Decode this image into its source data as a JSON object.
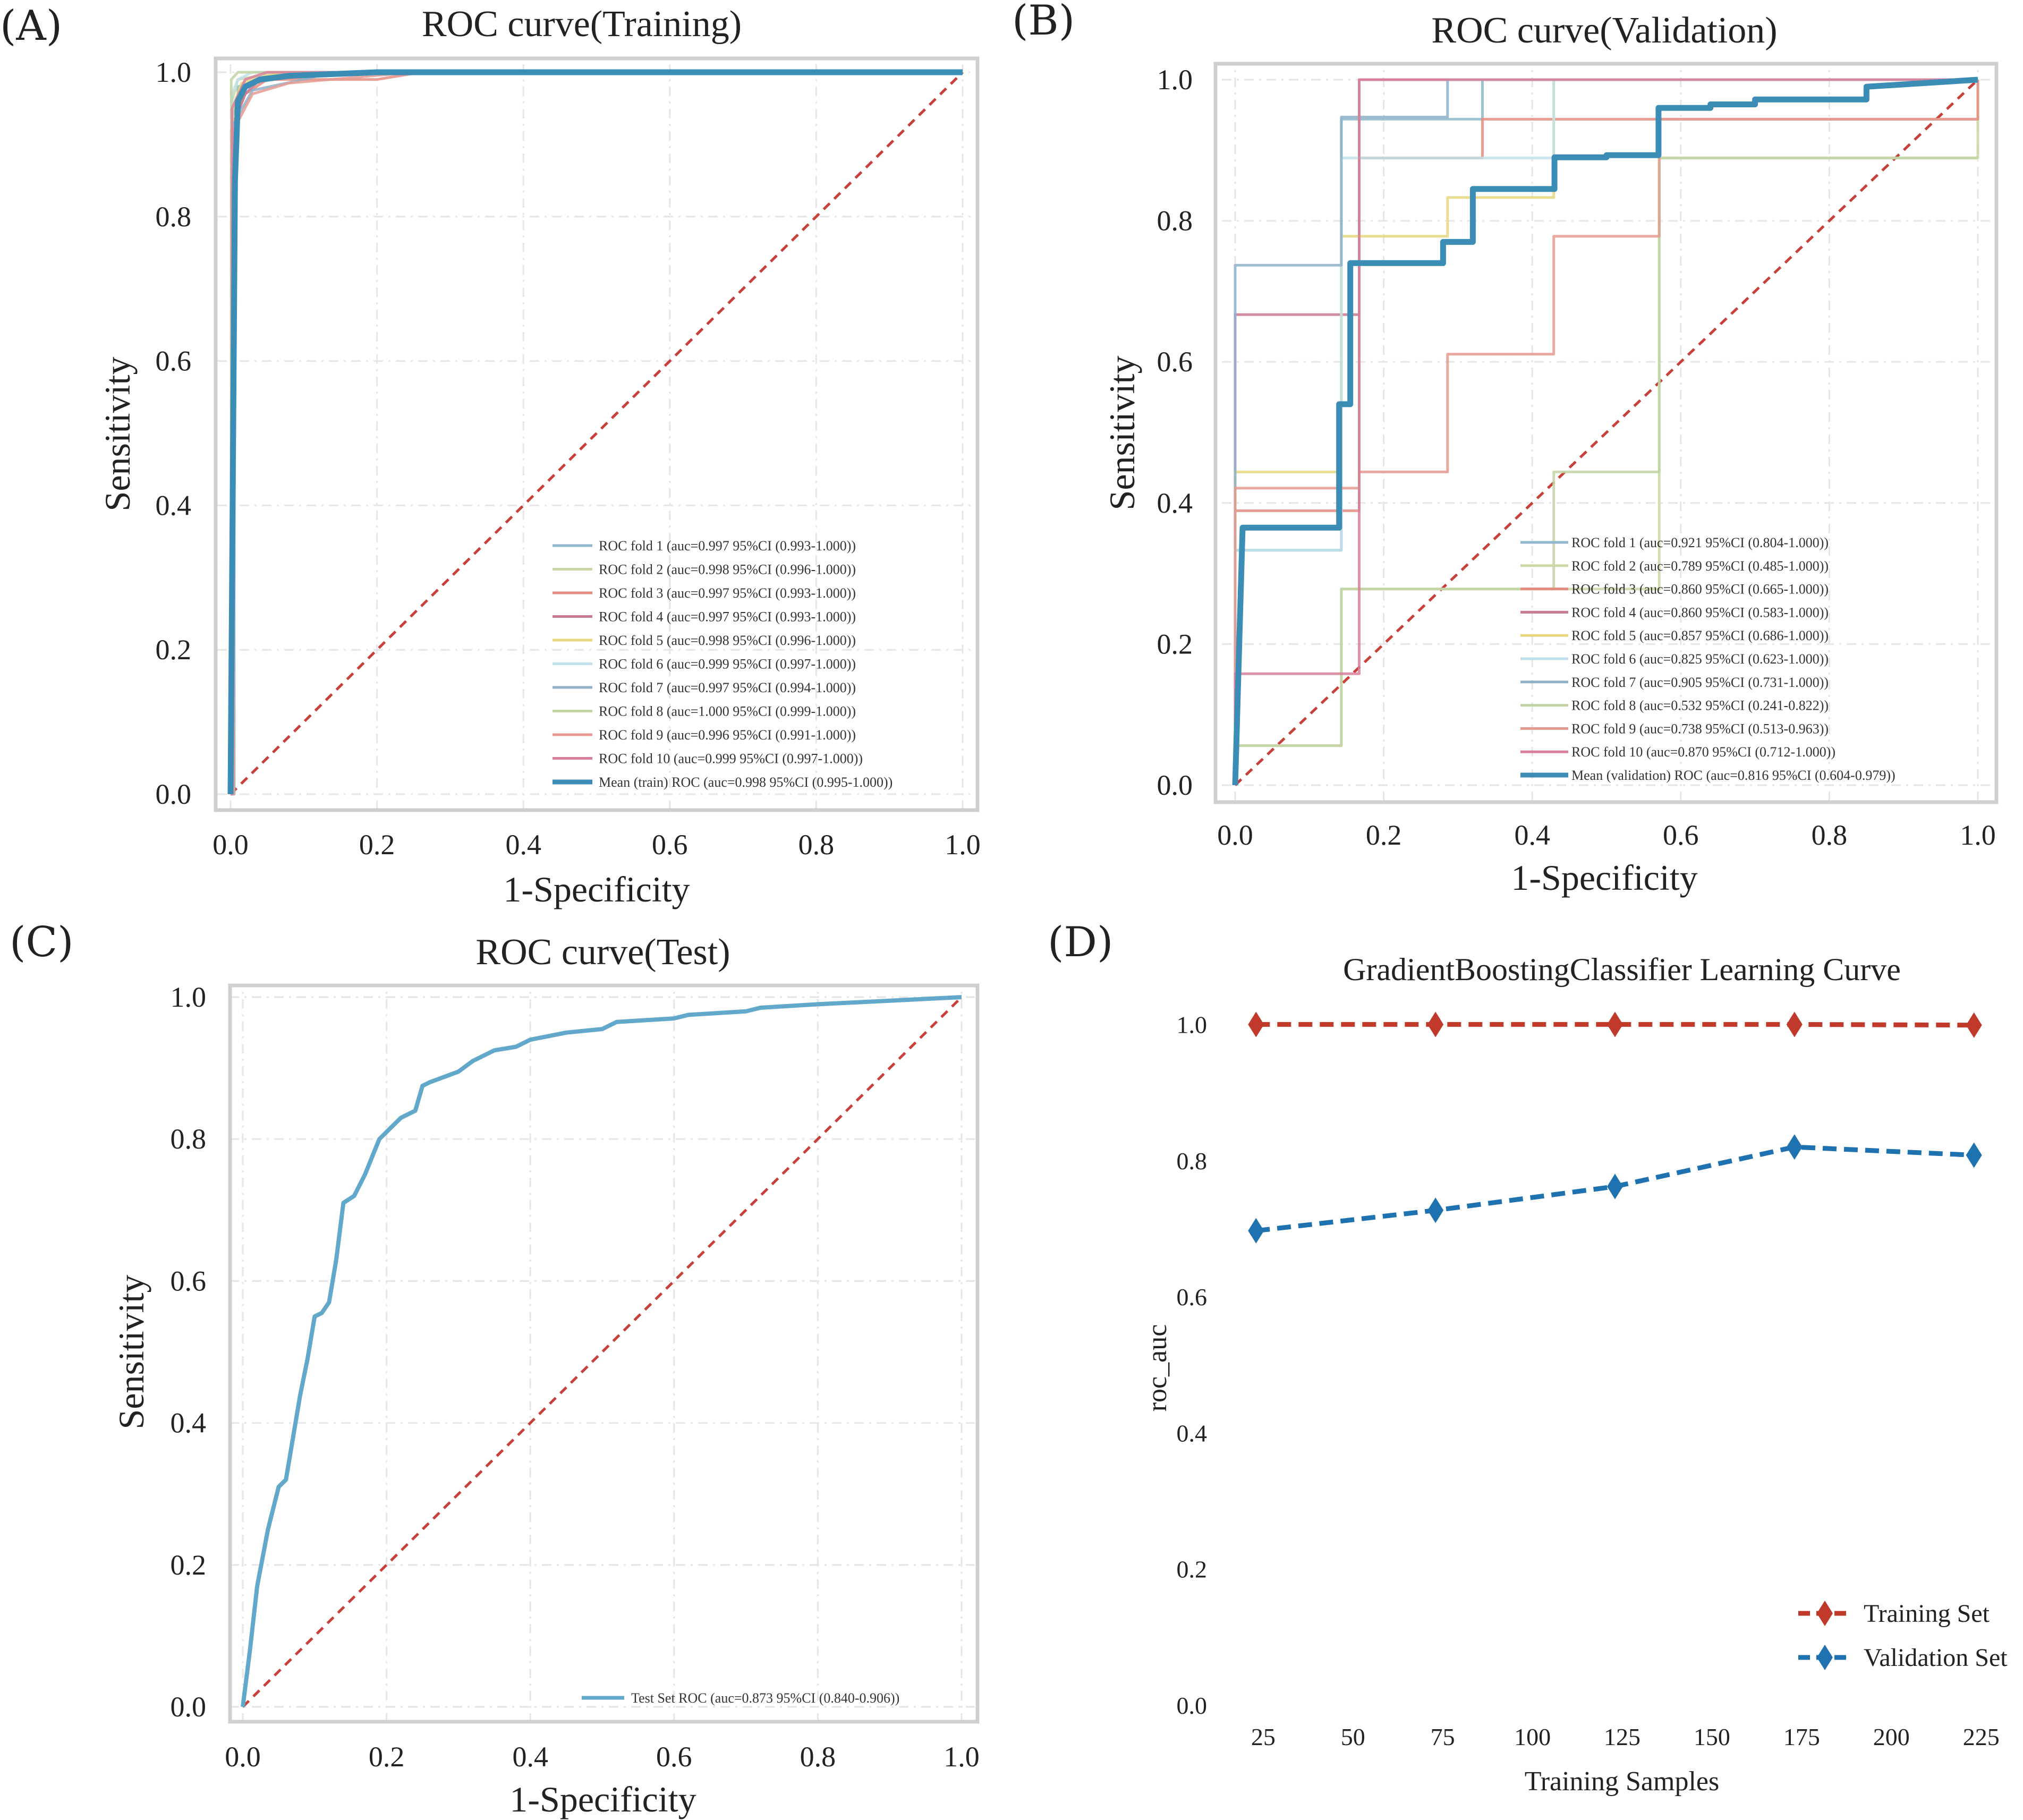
{
  "panel_labels": [
    "(A)",
    "(B)",
    "(C)",
    "(D)"
  ],
  "colors": {
    "fold": [
      "#8fb8cc",
      "#c9d7a6",
      "#e58c80",
      "#c87a8e",
      "#e6d77e",
      "#bfe0ea",
      "#8fb1c8",
      "#c2d4a3",
      "#e69a8f",
      "#d8809a"
    ],
    "mean": "#3b8db5",
    "test": "#62a8cb",
    "chance": "#c8403a",
    "train_curve": "#c0392b",
    "val_curve": "#1f72b0"
  },
  "chart_data": [
    {
      "id": "A",
      "type": "line",
      "title": "ROC curve(Training)",
      "xlabel": "1-Specificity",
      "ylabel": "Sensitivity",
      "xlim": [
        0,
        1
      ],
      "ylim": [
        0,
        1
      ],
      "xticks": [
        "0.0",
        "0.2",
        "0.4",
        "0.6",
        "0.8",
        "1.0"
      ],
      "yticks": [
        "0.0",
        "0.2",
        "0.4",
        "0.6",
        "0.8",
        "1.0"
      ],
      "grid": true,
      "legend_position": "lower-right",
      "series": [
        {
          "name": "ROC fold   1 (auc=0.997 95%CI (0.993-1.000))",
          "x": [
            0,
            0.003,
            0.003,
            0.01,
            0.01,
            0.03,
            0.06,
            0.15,
            1
          ],
          "y": [
            0,
            0,
            0.94,
            0.96,
            0.98,
            0.985,
            0.99,
            1,
            1
          ]
        },
        {
          "name": "ROC fold   2 (auc=0.998 95%CI (0.996-1.000))",
          "x": [
            0,
            0.002,
            0.002,
            0.01,
            0.04,
            0.08,
            1
          ],
          "y": [
            0,
            0,
            0.96,
            0.99,
            0.995,
            1,
            1
          ]
        },
        {
          "name": "ROC fold   3 (auc=0.997 95%CI (0.993-1.000))",
          "x": [
            0,
            0.004,
            0.004,
            0.02,
            0.05,
            0.2,
            0.26,
            1
          ],
          "y": [
            0,
            0,
            0.93,
            0.97,
            0.99,
            0.99,
            1,
            1
          ]
        },
        {
          "name": "ROC fold   4 (auc=0.997 95%CI (0.993-1.000))",
          "x": [
            0,
            0.001,
            0.001,
            0.02,
            0.04,
            0.12,
            1
          ],
          "y": [
            0,
            0,
            0.92,
            0.97,
            0.99,
            1,
            1
          ]
        },
        {
          "name": "ROC fold   5 (auc=0.998 95%CI (0.996-1.000))",
          "x": [
            0,
            0.003,
            0.003,
            0.015,
            0.05,
            0.1,
            1
          ],
          "y": [
            0,
            0,
            0.95,
            0.985,
            0.995,
            1,
            1
          ]
        },
        {
          "name": "ROC fold   6 (auc=0.999 95%CI (0.997-1.000))",
          "x": [
            0,
            0.002,
            0.002,
            0.01,
            0.03,
            1
          ],
          "y": [
            0,
            0,
            0.97,
            0.99,
            1,
            1
          ]
        },
        {
          "name": "ROC fold   7 (auc=0.997 95%CI (0.994-1.000))",
          "x": [
            0,
            0.005,
            0.005,
            0.03,
            0.1,
            0.14,
            1
          ],
          "y": [
            0,
            0,
            0.93,
            0.975,
            0.99,
            1,
            1
          ]
        },
        {
          "name": "ROC fold   8 (auc=1.000 95%CI (0.999-1.000))",
          "x": [
            0,
            0.001,
            0.001,
            0.01,
            1
          ],
          "y": [
            0,
            0,
            0.99,
            1,
            1
          ]
        },
        {
          "name": "ROC fold   9 (auc=0.996 95%CI (0.991-1.000))",
          "x": [
            0,
            0.004,
            0.004,
            0.03,
            0.08,
            0.25,
            1
          ],
          "y": [
            0,
            0,
            0.92,
            0.97,
            0.985,
            1,
            1
          ]
        },
        {
          "name": "ROC fold   10 (auc=0.999 95%CI (0.997-1.000))",
          "x": [
            0,
            0.002,
            0.002,
            0.02,
            0.05,
            1
          ],
          "y": [
            0,
            0,
            0.95,
            0.99,
            1,
            1
          ]
        },
        {
          "name": "Mean (train) ROC (auc=0.998 95%CI (0.995-1.000))",
          "mean": true,
          "x": [
            0,
            0.006,
            0.01,
            0.02,
            0.04,
            0.08,
            0.2,
            1
          ],
          "y": [
            0,
            0.85,
            0.96,
            0.98,
            0.99,
            0.995,
            1,
            1
          ]
        }
      ]
    },
    {
      "id": "B",
      "type": "line",
      "title": "ROC curve(Validation)",
      "xlabel": "1-Specificity",
      "ylabel": "Sensitivity",
      "xlim": [
        0,
        1
      ],
      "ylim": [
        0,
        1
      ],
      "xticks": [
        "0.0",
        "0.2",
        "0.4",
        "0.6",
        "0.8",
        "1.0"
      ],
      "yticks": [
        "0.0",
        "0.2",
        "0.4",
        "0.6",
        "0.8",
        "1.0"
      ],
      "grid": true,
      "legend_position": "lower-right",
      "series": [
        {
          "name": "ROC fold   1 (auc=0.921 95%CI (0.804-1.000))",
          "x": [
            0,
            0,
            0.143,
            0.143,
            0.333,
            0.333,
            0.667,
            1
          ],
          "y": [
            0,
            0.333,
            0.333,
            0.944,
            0.944,
            1,
            1,
            1
          ]
        },
        {
          "name": "ROC fold   2 (auc=0.789 95%CI (0.485-1.000))",
          "x": [
            0,
            0.143,
            0.143,
            0.571,
            0.571,
            1,
            1
          ],
          "y": [
            0.056,
            0.056,
            0.278,
            0.278,
            0.889,
            0.889,
            1
          ]
        },
        {
          "name": "ROC fold   3 (auc=0.860 95%CI (0.665-1.000))",
          "x": [
            0,
            0,
            0.167,
            0.167,
            0.333,
            0.333,
            1,
            1
          ],
          "y": [
            0,
            0.389,
            0.389,
            0.889,
            0.889,
            0.944,
            0.944,
            1
          ]
        },
        {
          "name": "ROC fold   4 (auc=0.860 95%CI (0.583-1.000))",
          "x": [
            0,
            0,
            0.167,
            0.167,
            0.5,
            0.5,
            1
          ],
          "y": [
            0,
            0.667,
            0.667,
            1,
            1,
            1,
            1
          ]
        },
        {
          "name": "ROC fold   5 (auc=0.857 95%CI (0.686-1.000))",
          "x": [
            0,
            0,
            0.143,
            0.143,
            0.286,
            0.286,
            0.429,
            0.429,
            1
          ],
          "y": [
            0,
            0.444,
            0.444,
            0.778,
            0.778,
            0.833,
            0.833,
            1,
            1
          ]
        },
        {
          "name": "ROC fold   6 (auc=0.825 95%CI (0.623-1.000))",
          "x": [
            0,
            0,
            0.143,
            0.143,
            0.429,
            0.429,
            0.857,
            0.857,
            1
          ],
          "y": [
            0,
            0.333,
            0.333,
            0.889,
            0.889,
            1,
            1,
            1,
            1
          ]
        },
        {
          "name": "ROC fold   7 (auc=0.905 95%CI (0.731-1.000))",
          "x": [
            0,
            0,
            0.143,
            0.143,
            0.286,
            0.286,
            1
          ],
          "y": [
            0,
            0.737,
            0.737,
            0.947,
            0.947,
            1,
            1
          ]
        },
        {
          "name": "ROC fold   8 (auc=0.532 95%CI (0.241-0.822))",
          "x": [
            0,
            0,
            0.143,
            0.143,
            0.429,
            0.429,
            0.571,
            0.571,
            1
          ],
          "y": [
            0,
            0.056,
            0.056,
            0.278,
            0.278,
            0.444,
            0.444,
            0.889,
            0.889
          ]
        },
        {
          "name": "ROC fold   9 (auc=0.738 95%CI (0.513-0.963))",
          "x": [
            0,
            0,
            0.167,
            0.167,
            0.286,
            0.286,
            0.429,
            0.429,
            0.571,
            0.571,
            1
          ],
          "y": [
            0,
            0.421,
            0.421,
            0.444,
            0.444,
            0.611,
            0.611,
            0.778,
            0.778,
            0.944,
            0.944
          ]
        },
        {
          "name": "ROC fold   10 (auc=0.870 95%CI (0.712-1.000))",
          "x": [
            0,
            0,
            0.167,
            0.167,
            0.833,
            0.833,
            1
          ],
          "y": [
            0,
            0.158,
            0.158,
            1,
            1,
            1,
            1
          ]
        },
        {
          "name": "Mean (validation) ROC (auc=0.816 95%CI (0.604-0.979))",
          "mean": true,
          "x": [
            0,
            0.01,
            0.01,
            0.14,
            0.14,
            0.155,
            0.155,
            0.168,
            0.168,
            0.28,
            0.28,
            0.32,
            0.32,
            0.43,
            0.43,
            0.5,
            0.5,
            0.57,
            0.57,
            0.64,
            0.64,
            0.7,
            0.7,
            0.85,
            0.85,
            1
          ],
          "y": [
            0,
            0.365,
            0.365,
            0.365,
            0.54,
            0.54,
            0.74,
            0.74,
            0.74,
            0.74,
            0.77,
            0.77,
            0.845,
            0.845,
            0.89,
            0.89,
            0.893,
            0.893,
            0.96,
            0.96,
            0.965,
            0.965,
            0.972,
            0.972,
            0.99,
            1
          ]
        }
      ]
    },
    {
      "id": "C",
      "type": "line",
      "title": "ROC curve(Test)",
      "xlabel": "1-Specificity",
      "ylabel": "Sensitivity",
      "xlim": [
        0,
        1
      ],
      "ylim": [
        0,
        1
      ],
      "xticks": [
        "0.0",
        "0.2",
        "0.4",
        "0.6",
        "0.8",
        "1.0"
      ],
      "yticks": [
        "0.0",
        "0.2",
        "0.4",
        "0.6",
        "0.8",
        "1.0"
      ],
      "grid": true,
      "legend_position": "lower-right",
      "series": [
        {
          "name": "Test Set ROC (auc=0.873 95%CI (0.840-0.906))",
          "test": true,
          "x": [
            0,
            0.01,
            0.02,
            0.035,
            0.05,
            0.06,
            0.07,
            0.08,
            0.09,
            0.1,
            0.11,
            0.12,
            0.13,
            0.14,
            0.155,
            0.17,
            0.18,
            0.19,
            0.2,
            0.22,
            0.24,
            0.25,
            0.26,
            0.3,
            0.32,
            0.35,
            0.38,
            0.4,
            0.45,
            0.5,
            0.52,
            0.6,
            0.62,
            0.7,
            0.72,
            0.8,
            0.9,
            1.0
          ],
          "y": [
            0,
            0.08,
            0.17,
            0.25,
            0.31,
            0.32,
            0.38,
            0.44,
            0.49,
            0.55,
            0.555,
            0.57,
            0.63,
            0.71,
            0.72,
            0.75,
            0.775,
            0.8,
            0.81,
            0.83,
            0.84,
            0.875,
            0.88,
            0.895,
            0.91,
            0.925,
            0.93,
            0.94,
            0.95,
            0.955,
            0.965,
            0.97,
            0.975,
            0.98,
            0.985,
            0.99,
            0.995,
            1.0
          ]
        }
      ]
    },
    {
      "id": "D",
      "type": "line",
      "title": "GradientBoostingClassifier Learning Curve",
      "xlabel": "Training Samples",
      "ylabel": "roc_auc",
      "xlim": [
        12,
        234
      ],
      "ylim": [
        0,
        1.03
      ],
      "xticks": [
        "25",
        "50",
        "75",
        "100",
        "125",
        "150",
        "175",
        "200",
        "225"
      ],
      "yticks": [
        "0.0",
        "0.2",
        "0.4",
        "0.6",
        "0.8",
        "1.0"
      ],
      "grid": false,
      "legend_position": "lower-right",
      "series": [
        {
          "name": "Training Set",
          "x": [
            23,
            73,
            123,
            173,
            223
          ],
          "y": [
            1.0,
            1.0,
            1.0,
            1.0,
            0.999
          ]
        },
        {
          "name": "Validation Set",
          "x": [
            23,
            73,
            123,
            173,
            223
          ],
          "y": [
            0.697,
            0.727,
            0.762,
            0.82,
            0.808
          ]
        }
      ]
    }
  ]
}
